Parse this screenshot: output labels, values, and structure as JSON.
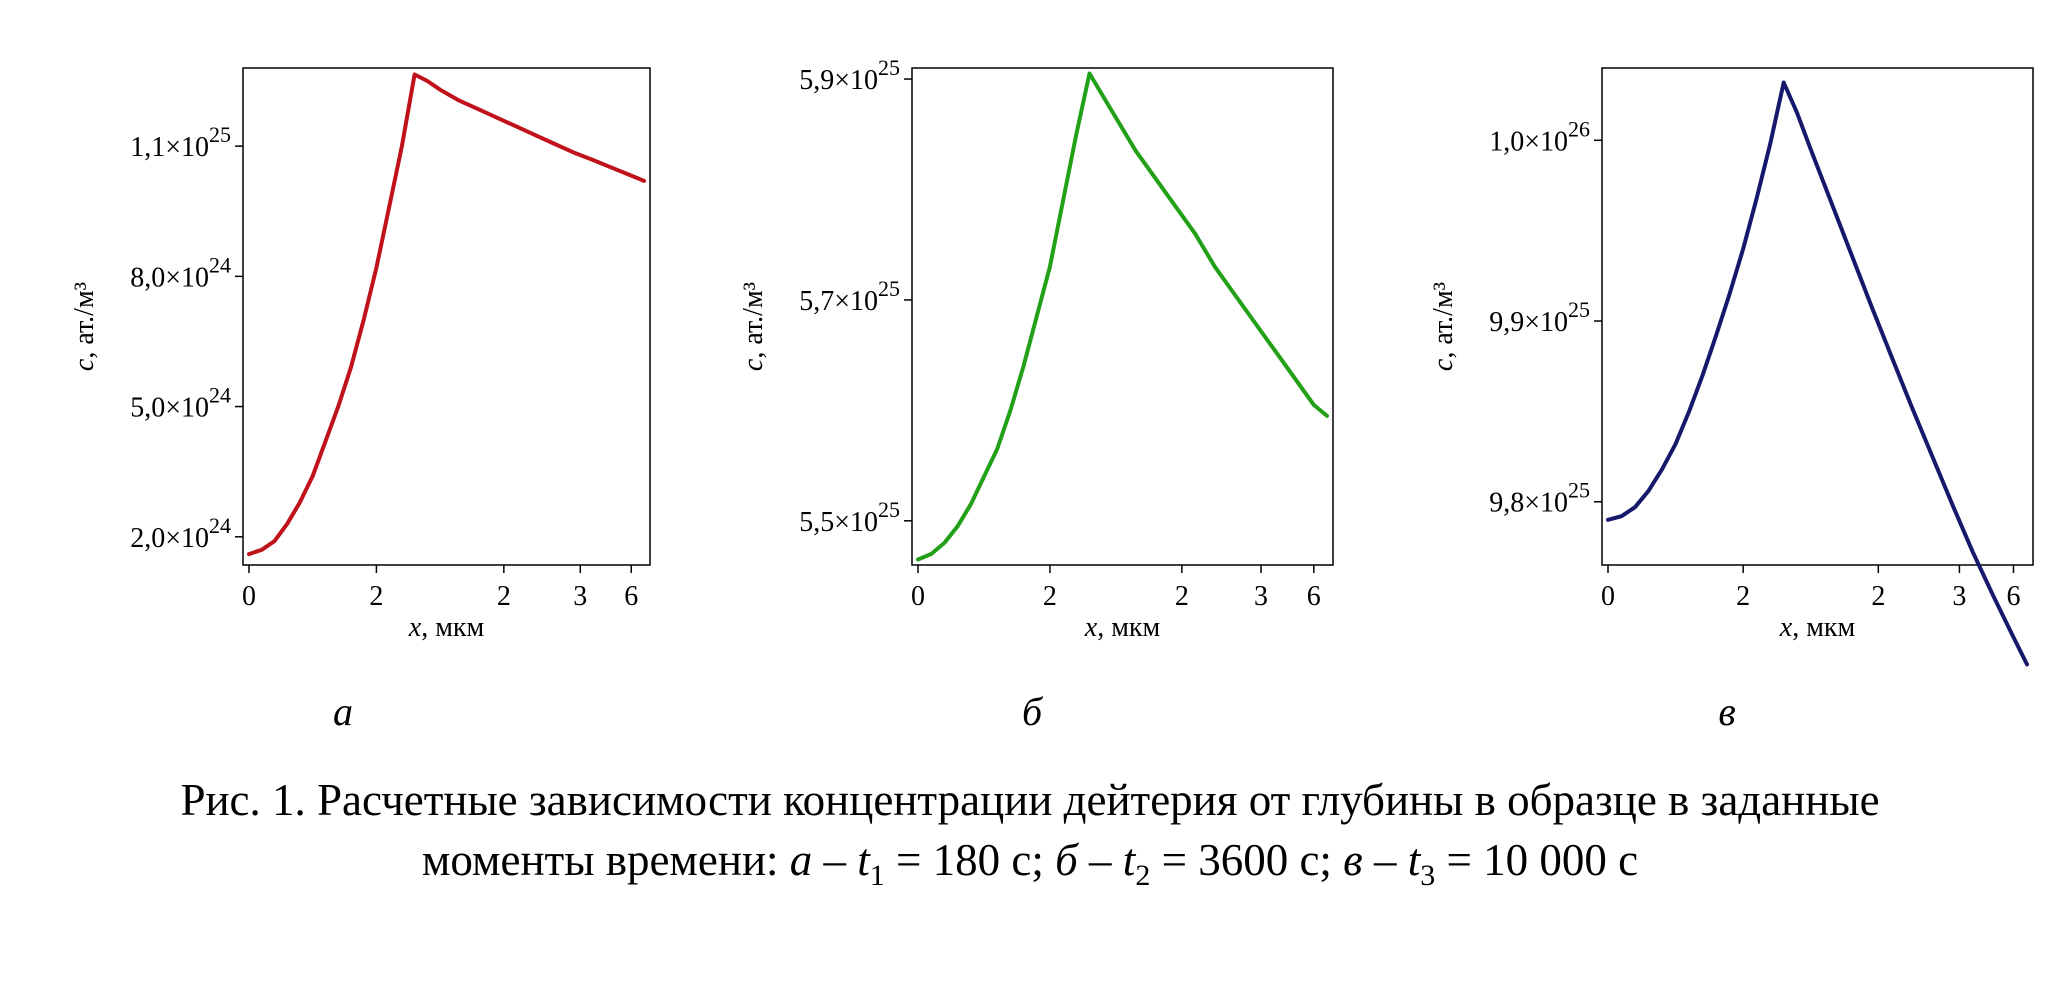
{
  "chart_data": [
    {
      "type": "line",
      "panel_label": "а",
      "color": "#c0121a",
      "xlabel": "x, мкм",
      "ylabel": "c, ат./м³",
      "x_ticks": [
        "0",
        "2",
        "2",
        "3",
        "6"
      ],
      "y_ticks": [
        {
          "label": "1,1×10",
          "exp": "25",
          "value": 1.1e+25
        },
        {
          "label": "8,0×10",
          "exp": "24",
          "value": 8e+24
        },
        {
          "label": "5,0×10",
          "exp": "24",
          "value": 5e+24
        },
        {
          "label": "2,0×10",
          "exp": "24",
          "value": 2e+24
        }
      ],
      "xlim": [
        0,
        6.2
      ],
      "ylim": [
        1.35e+24,
        1.28e+25
      ],
      "x": [
        0.0,
        0.2,
        0.4,
        0.6,
        0.8,
        1.0,
        1.2,
        1.4,
        1.6,
        1.8,
        2.0,
        2.2,
        2.4,
        2.6,
        2.8,
        3.0,
        3.3,
        3.6,
        3.9,
        4.2,
        4.5,
        4.8,
        5.1,
        5.4,
        5.7,
        6.0,
        6.2
      ],
      "y": [
        1.6e+24,
        1.7e+24,
        1.9e+24,
        2.3e+24,
        2.8e+24,
        3.4e+24,
        4.2e+24,
        5e+24,
        5.9e+24,
        7e+24,
        8.2e+24,
        9.6e+24,
        1.1e+25,
        1.265e+25,
        1.25e+25,
        1.23e+25,
        1.205e+25,
        1.185e+25,
        1.165e+25,
        1.145e+25,
        1.125e+25,
        1.105e+25,
        1.085e+25,
        1.068e+25,
        1.05e+25,
        1.032e+25,
        1.02e+25
      ]
    },
    {
      "type": "line",
      "panel_label": "б",
      "color": "#22a018",
      "xlabel": "x, мкм",
      "ylabel": "c, ат./м³",
      "x_ticks": [
        "0",
        "2",
        "2",
        "3",
        "6"
      ],
      "y_ticks": [
        {
          "label": "5,9×10",
          "exp": "25",
          "value": 5.9e+25
        },
        {
          "label": "5,7×10",
          "exp": "25",
          "value": 5.7e+25
        },
        {
          "label": "5,5×10",
          "exp": "25",
          "value": 5.5e+25
        }
      ],
      "xlim": [
        0,
        6.2
      ],
      "ylim": [
        5.46e+25,
        5.91e+25
      ],
      "x": [
        0.0,
        0.2,
        0.4,
        0.6,
        0.8,
        1.0,
        1.2,
        1.4,
        1.6,
        1.8,
        2.0,
        2.2,
        2.4,
        2.6,
        2.8,
        3.0,
        3.3,
        3.6,
        3.9,
        4.2,
        4.5,
        4.8,
        5.1,
        5.4,
        5.7,
        6.0,
        6.2
      ],
      "y": [
        5.465e+25,
        5.47e+25,
        5.48e+25,
        5.495e+25,
        5.515e+25,
        5.54e+25,
        5.565e+25,
        5.6e+25,
        5.64e+25,
        5.685e+25,
        5.73e+25,
        5.79e+25,
        5.85e+25,
        5.905e+25,
        5.885e+25,
        5.865e+25,
        5.835e+25,
        5.81e+25,
        5.785e+25,
        5.76e+25,
        5.73e+25,
        5.705e+25,
        5.68e+25,
        5.655e+25,
        5.63e+25,
        5.605e+25,
        5.595e+25
      ]
    },
    {
      "type": "line",
      "panel_label": "в",
      "color": "#16196b",
      "xlabel": "x, мкм",
      "ylabel": "c, ат./м³",
      "x_ticks": [
        "0",
        "2",
        "2",
        "3",
        "6"
      ],
      "y_ticks": [
        {
          "label": "1,0×10",
          "exp": "26",
          "value": 1e+26
        },
        {
          "label": "9,9×10",
          "exp": "25",
          "value": 9.9e+25
        },
        {
          "label": "9,8×10",
          "exp": "25",
          "value": 9.8e+25
        }
      ],
      "xlim": [
        0,
        6.2
      ],
      "ylim": [
        9.765e+25,
        1.004e+26
      ],
      "x": [
        0.0,
        0.2,
        0.4,
        0.6,
        0.8,
        1.0,
        1.2,
        1.4,
        1.6,
        1.8,
        2.0,
        2.2,
        2.4,
        2.6,
        2.8,
        3.0,
        3.3,
        3.6,
        3.9,
        4.2,
        4.5,
        4.8,
        5.1,
        5.4,
        5.7,
        6.0,
        6.2
      ],
      "y": [
        9.79e+25,
        9.792e+25,
        9.797e+25,
        9.806e+25,
        9.818e+25,
        9.832e+25,
        9.85e+25,
        9.87e+25,
        9.892e+25,
        9.915e+25,
        9.94e+25,
        9.968e+25,
        9.998e+25,
        1.0032e+26,
        1.0015e+26,
        9.995e+25,
        9.966e+25,
        9.937e+25,
        9.908e+25,
        9.88e+25,
        9.852e+25,
        9.825e+25,
        9.798e+25,
        9.772e+25,
        9.748e+25,
        9.725e+25,
        9.71e+25
      ]
    }
  ],
  "caption": {
    "line1": "Рис. 1. Расчетные зависимости концентрации дейтерия от глубины в образце в заданные",
    "line2_prefix": "моменты времени: ",
    "a": "а",
    "t": "t",
    "sub1": "1",
    "val1": " = 180 с; ",
    "b": "б",
    "sub2": "2",
    "val2": " = 3600 с; ",
    "v": "в",
    "sub3": "3",
    "val3": " = 10 000 с",
    "dash": " – "
  }
}
